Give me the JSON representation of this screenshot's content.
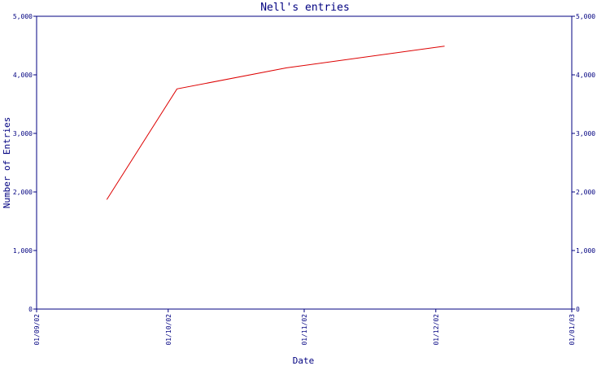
{
  "chart_data": {
    "type": "line",
    "title": "Nell's entries",
    "xlabel": "Date",
    "ylabel": "Number of Entries",
    "x_ticks": [
      "01/09/02",
      "01/10/02",
      "01/11/02",
      "01/12/02",
      "01/01/03"
    ],
    "y_ticks": [
      "0",
      "1,000",
      "2,000",
      "3,000",
      "4,000",
      "5,000"
    ],
    "ylim": [
      0,
      5000
    ],
    "right_axis": true,
    "grid": false,
    "series": [
      {
        "color": "#dd0000",
        "points": [
          {
            "x": "2002-09-17",
            "y": 1870
          },
          {
            "x": "2002-10-03",
            "y": 3760
          },
          {
            "x": "2002-10-28",
            "y": 4120
          },
          {
            "x": "2002-12-03",
            "y": 4490
          }
        ]
      }
    ]
  }
}
